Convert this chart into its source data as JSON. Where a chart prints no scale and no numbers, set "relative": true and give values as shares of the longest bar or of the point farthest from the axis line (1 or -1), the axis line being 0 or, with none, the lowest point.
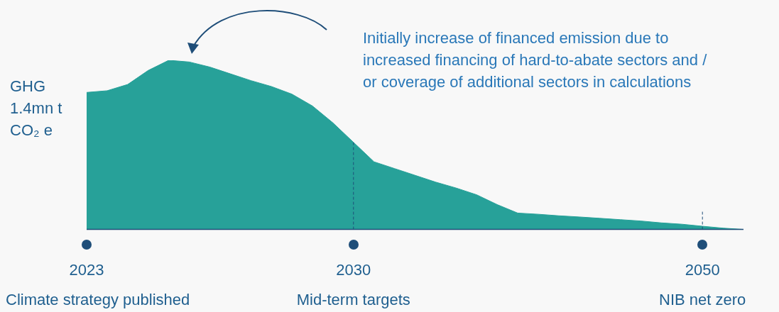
{
  "chart_data": {
    "type": "area",
    "relative": true,
    "ylabel": "GHG\n1.4mn t\nCO₂ e",
    "categories": [
      "2023",
      null,
      null,
      null,
      null,
      null,
      null,
      null,
      null,
      null,
      null,
      null,
      null,
      "2030",
      null,
      null,
      null,
      null,
      null,
      null,
      null,
      null,
      null,
      null,
      null,
      null,
      null,
      null,
      null,
      null,
      "2050",
      null,
      null
    ],
    "series": [
      {
        "color": "#27a199",
        "values": [
          0.81,
          0.82,
          0.857,
          0.94,
          1,
          0.99,
          0.96,
          0.92,
          0.88,
          0.845,
          0.8,
          0.73,
          0.63,
          0.515,
          0.4,
          0.36,
          0.32,
          0.28,
          0.245,
          0.205,
          0.147,
          0.097,
          0.09,
          0.081,
          0.074,
          0.066,
          0.058,
          0.05,
          0.039,
          0.031,
          0.019,
          0.008,
          0
        ]
      }
    ],
    "ref_lines": [
      {
        "axis": "x",
        "value": "2030",
        "line_style": "dashed",
        "color": "#1f4e79"
      },
      {
        "axis": "x",
        "value": "2050",
        "line_style": "dashed",
        "color": "#1f4e79"
      }
    ],
    "annotations": [
      "Initially increase of financed emission due to\nincreased financing of hard-to-abate sectors and /\nor coverage of additional sectors in calculations",
      "Climate strategy published",
      "Mid-term targets",
      "NIB net zero"
    ],
    "grid": false,
    "legend": false
  }
}
